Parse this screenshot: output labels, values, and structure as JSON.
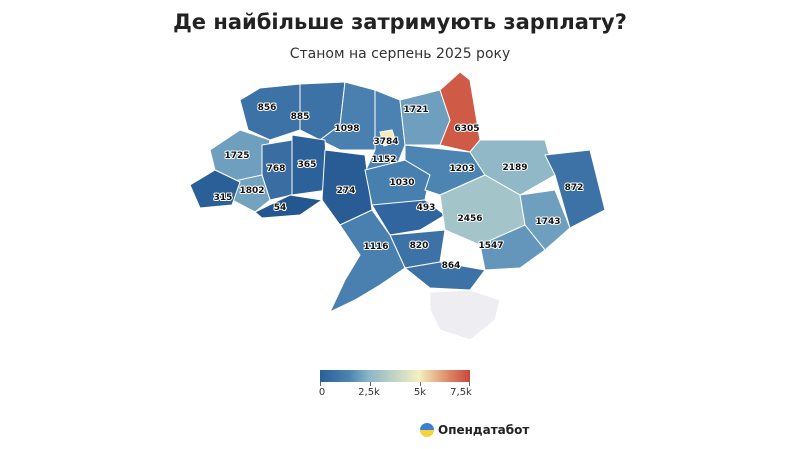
{
  "title": "Де найбільше затримують зарплату?",
  "subtitle": "Станом на серпень 2025 року",
  "legend": {
    "ticks": [
      "0",
      "2,5k",
      "5k",
      "7,5k"
    ],
    "colors": [
      "#2a5f97",
      "#4d86b3",
      "#8fb6c8",
      "#f4f0c0",
      "#e08a6a",
      "#c6483c"
    ]
  },
  "brand": "Опендатабот",
  "regions": [
    {
      "id": "volyn",
      "value": "856",
      "color": "#3d72a6"
    },
    {
      "id": "rivne",
      "value": "885",
      "color": "#3d72a6"
    },
    {
      "id": "zhytomyr",
      "value": "1098",
      "color": "#4a80b0"
    },
    {
      "id": "kyiv-oblast",
      "value": "1152",
      "color": "#4b82b1"
    },
    {
      "id": "kyiv-city",
      "value": "3784",
      "color": "#f2ecbd"
    },
    {
      "id": "chernihiv",
      "value": "1721",
      "color": "#6e9fbe"
    },
    {
      "id": "sumy",
      "value": "6305",
      "color": "#cf5b47"
    },
    {
      "id": "lviv",
      "value": "1725",
      "color": "#6e9fbe"
    },
    {
      "id": "ternopil",
      "value": "768",
      "color": "#3a6ea2"
    },
    {
      "id": "khmelnytskyi",
      "value": "365",
      "color": "#2d6199"
    },
    {
      "id": "vinnytsia",
      "value": "274",
      "color": "#295b94"
    },
    {
      "id": "cherkasy",
      "value": "1030",
      "color": "#4780af"
    },
    {
      "id": "poltava",
      "value": "1203",
      "color": "#4c84b2"
    },
    {
      "id": "kharkiv",
      "value": "2189",
      "color": "#90b8c6"
    },
    {
      "id": "luhansk",
      "value": "872",
      "color": "#3d72a6"
    },
    {
      "id": "ivano-frankivsk",
      "value": "1802",
      "color": "#74a3c0"
    },
    {
      "id": "zakarpattia",
      "value": "315",
      "color": "#2b5f97"
    },
    {
      "id": "chernivtsi",
      "value": "54",
      "color": "#245790"
    },
    {
      "id": "kirovohrad",
      "value": "493",
      "color": "#3165a0"
    },
    {
      "id": "dnipropetrovsk",
      "value": "2456",
      "color": "#a3c4c8"
    },
    {
      "id": "donetsk",
      "value": "1743",
      "color": "#6f9fbf"
    },
    {
      "id": "mykolaiv",
      "value": "820",
      "color": "#3c72a5"
    },
    {
      "id": "odesa",
      "value": "1116",
      "color": "#4980af"
    },
    {
      "id": "zaporizhzhia",
      "value": "1547",
      "color": "#6396ba"
    },
    {
      "id": "kherson",
      "value": "864",
      "color": "#3d72a6"
    },
    {
      "id": "crimea",
      "value": "",
      "color": "#eeeef2"
    }
  ]
}
